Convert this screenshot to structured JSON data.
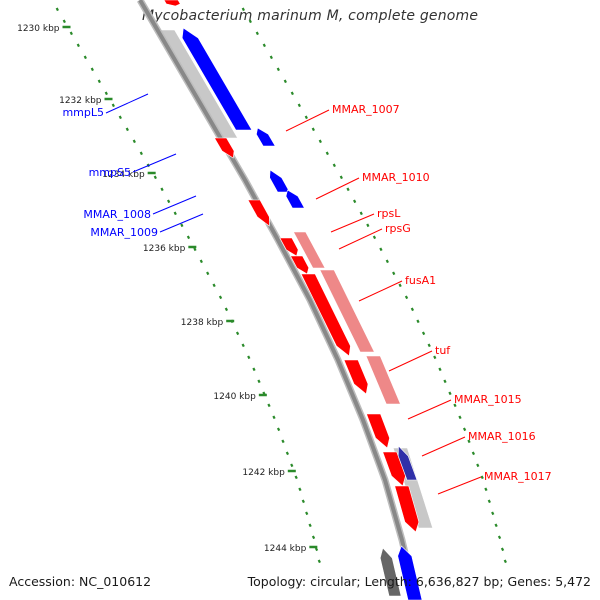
{
  "title": "Mycobacterium marinum M, complete genome",
  "footer": {
    "accession": "Accession: NC_010612",
    "summary": "Topology: circular; Length: 6,636,827 bp; Genes: 5,472"
  },
  "colors": {
    "forward_gene": "#ff0000",
    "reverse_gene": "#0000ff",
    "forward_feature": "#ee8888",
    "reverse_feature": "#c8c8c8",
    "backbone": "#888888",
    "tick_marks": "#2a8a2a"
  },
  "scale": {
    "unit": "kbp",
    "ticks": [
      {
        "kbp": 1230,
        "label": "1230 kbp"
      },
      {
        "kbp": 1232,
        "label": "1232 kbp"
      },
      {
        "kbp": 1234,
        "label": "1234 kbp"
      },
      {
        "kbp": 1236,
        "label": "1236 kbp"
      },
      {
        "kbp": 1238,
        "label": "1238 kbp"
      },
      {
        "kbp": 1240,
        "label": "1240 kbp"
      },
      {
        "kbp": 1242,
        "label": "1242 kbp"
      },
      {
        "kbp": 1244,
        "label": "1244 kbp"
      }
    ]
  },
  "genes": {
    "reverse": [
      {
        "label": "mmpL5"
      },
      {
        "label": "mmpS5"
      },
      {
        "label": "MMAR_1008"
      },
      {
        "label": "MMAR_1009"
      }
    ],
    "forward": [
      {
        "label": "MMAR_1007"
      },
      {
        "label": "MMAR_1010"
      },
      {
        "label": "rpsL"
      },
      {
        "label": "rpsG"
      },
      {
        "label": "fusA1"
      },
      {
        "label": "tuf"
      },
      {
        "label": "MMAR_1015"
      },
      {
        "label": "MMAR_1016"
      },
      {
        "label": "MMAR_1017"
      }
    ]
  }
}
